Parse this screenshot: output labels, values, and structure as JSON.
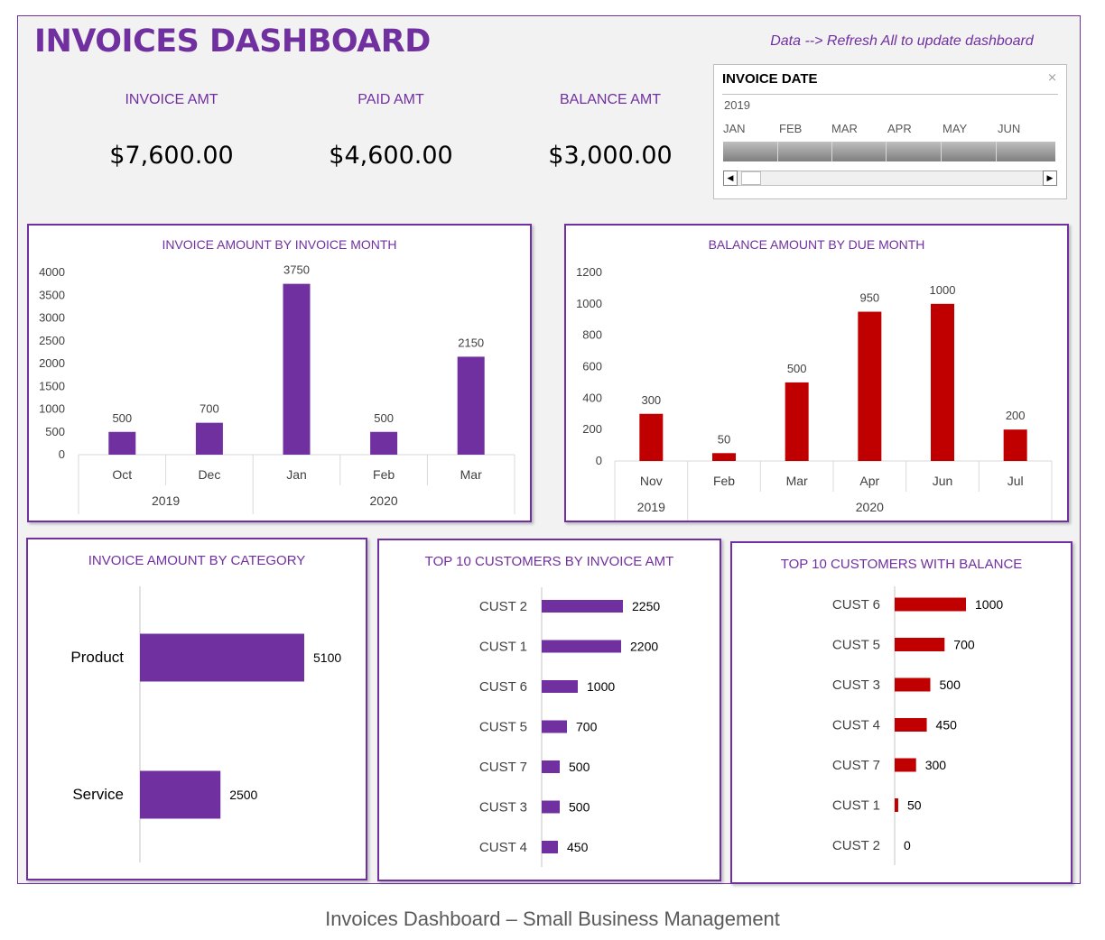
{
  "header": {
    "title": "INVOICES DASHBOARD",
    "note": "Data --> Refresh All to update dashboard"
  },
  "kpis": [
    {
      "label": "INVOICE AMT",
      "value": "$7,600.00"
    },
    {
      "label": "PAID AMT",
      "value": "$4,600.00"
    },
    {
      "label": "BALANCE AMT",
      "value": "$3,000.00"
    }
  ],
  "slicer": {
    "title": "INVOICE DATE",
    "year": "2019",
    "months": [
      "JAN",
      "FEB",
      "MAR",
      "APR",
      "MAY",
      "JUN"
    ]
  },
  "caption": "Invoices Dashboard – Small Business Management",
  "colors": {
    "accent": "#7030a0",
    "balance": "#c00000",
    "background": "#f2f2f2"
  },
  "chart_data": [
    {
      "type": "bar",
      "title": "INVOICE AMOUNT BY INVOICE MONTH",
      "categories": [
        "Oct",
        "Dec",
        "Jan",
        "Feb",
        "Mar"
      ],
      "groups": [
        {
          "label": "2019",
          "count": 2
        },
        {
          "label": "2020",
          "count": 3
        }
      ],
      "values": [
        500,
        700,
        3750,
        500,
        2150
      ],
      "ylim": [
        0,
        4000
      ],
      "yticks": [
        0,
        500,
        1000,
        1500,
        2000,
        2500,
        3000,
        3500,
        4000
      ],
      "color": "#7030a0"
    },
    {
      "type": "bar",
      "title": "BALANCE AMOUNT BY DUE MONTH",
      "categories": [
        "Nov",
        "Feb",
        "Mar",
        "Apr",
        "Jun",
        "Jul"
      ],
      "groups": [
        {
          "label": "2019",
          "count": 1
        },
        {
          "label": "2020",
          "count": 5
        }
      ],
      "values": [
        300,
        50,
        500,
        950,
        1000,
        200
      ],
      "ylim": [
        0,
        1200
      ],
      "yticks": [
        0,
        200,
        400,
        600,
        800,
        1000,
        1200
      ],
      "color": "#c00000"
    },
    {
      "type": "bar",
      "orientation": "horizontal",
      "title": "INVOICE AMOUNT BY CATEGORY",
      "categories": [
        "Product",
        "Service"
      ],
      "values": [
        5100,
        2500
      ],
      "color": "#7030a0"
    },
    {
      "type": "bar",
      "orientation": "horizontal",
      "title": "TOP 10 CUSTOMERS BY INVOICE AMT",
      "categories": [
        "CUST 2",
        "CUST 1",
        "CUST 6",
        "CUST 5",
        "CUST 7",
        "CUST 3",
        "CUST 4"
      ],
      "values": [
        2250,
        2200,
        1000,
        700,
        500,
        500,
        450
      ],
      "color": "#7030a0"
    },
    {
      "type": "bar",
      "orientation": "horizontal",
      "title": "TOP 10 CUSTOMERS WITH BALANCE",
      "categories": [
        "CUST 6",
        "CUST 5",
        "CUST 3",
        "CUST 4",
        "CUST 7",
        "CUST 1",
        "CUST 2"
      ],
      "values": [
        1000,
        700,
        500,
        450,
        300,
        50,
        0
      ],
      "color": "#c00000"
    }
  ]
}
